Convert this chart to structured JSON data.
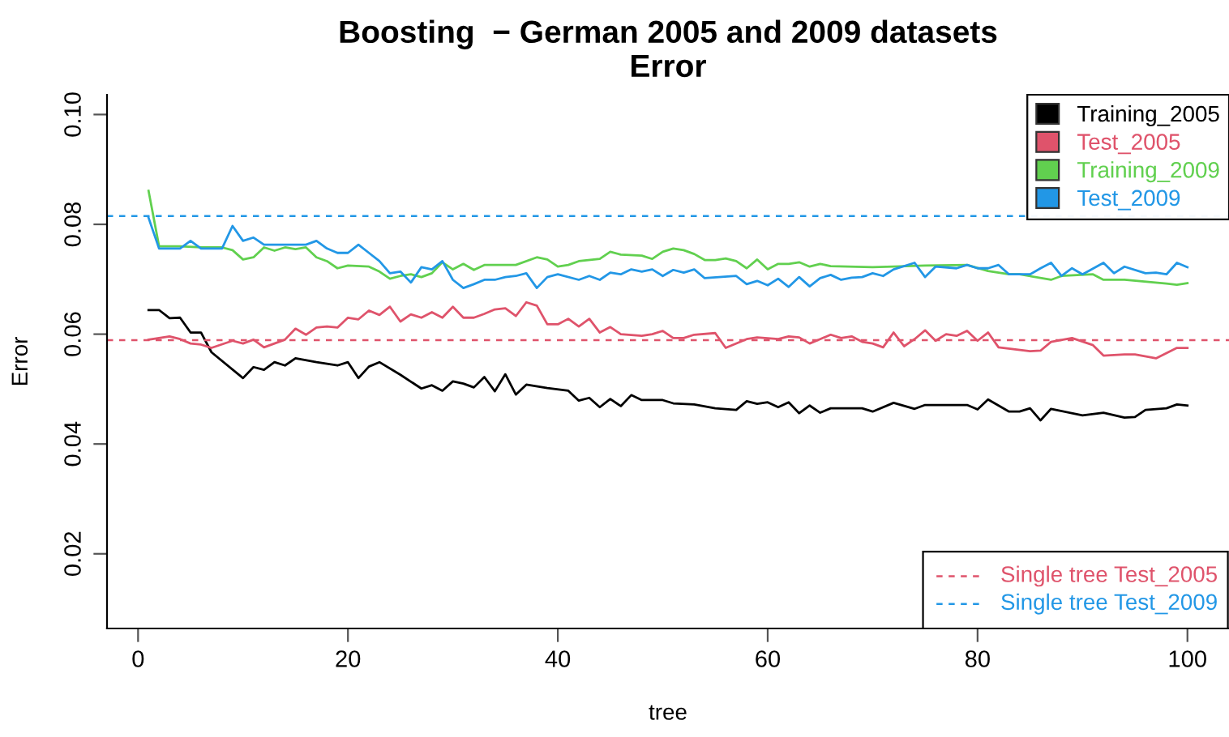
{
  "chart_data": {
    "type": "line",
    "title": "Boosting  − German 2005 and 2009 datasets\nError",
    "xlabel": "tree",
    "ylabel": "Error",
    "xlim": [
      -2.96,
      103.96
    ],
    "xticks": [
      0,
      20,
      40,
      60,
      80,
      100
    ],
    "ylim": [
      0.0064,
      0.1036
    ],
    "yticks": [
      0.02,
      0.04,
      0.06,
      0.08,
      {
        "value": 0.1,
        "label": "0.10"
      }
    ],
    "legend": "top right",
    "grid": false,
    "series": [
      {
        "name": "Training_2005",
        "color": "#000000",
        "x": [
          1,
          2,
          3,
          4,
          5,
          6,
          7,
          10,
          11,
          12,
          13,
          14,
          15,
          17,
          19,
          20,
          21,
          22,
          23,
          25,
          27,
          28,
          29,
          30,
          31,
          32,
          33,
          34,
          35,
          36,
          37,
          39,
          41,
          42,
          43,
          44,
          45,
          46,
          47,
          48,
          50,
          51,
          53,
          55,
          57,
          58,
          59,
          60,
          61,
          62,
          63,
          64,
          65,
          66,
          69,
          70,
          72,
          74,
          75,
          79,
          80,
          81,
          83,
          84,
          85,
          86,
          87,
          90,
          92,
          94,
          95,
          96,
          98,
          99,
          100
        ],
        "values": [
          0.0644,
          0.0644,
          0.0629,
          0.063,
          0.0603,
          0.0603,
          0.0567,
          0.052,
          0.054,
          0.0535,
          0.0549,
          0.0543,
          0.0556,
          0.0549,
          0.0543,
          0.0549,
          0.052,
          0.0541,
          0.0549,
          0.0526,
          0.0501,
          0.0507,
          0.0497,
          0.0514,
          0.051,
          0.0503,
          0.0522,
          0.0496,
          0.0527,
          0.049,
          0.0508,
          0.0502,
          0.0497,
          0.0479,
          0.0484,
          0.0467,
          0.0482,
          0.0469,
          0.0489,
          0.048,
          0.048,
          0.0474,
          0.0472,
          0.0465,
          0.0462,
          0.0478,
          0.0473,
          0.0476,
          0.0467,
          0.0476,
          0.0456,
          0.047,
          0.0457,
          0.0465,
          0.0465,
          0.0459,
          0.0475,
          0.0464,
          0.0471,
          0.0471,
          0.0463,
          0.0481,
          0.0459,
          0.0459,
          0.0465,
          0.0443,
          0.0464,
          0.0452,
          0.0457,
          0.0448,
          0.0449,
          0.0462,
          0.0465,
          0.0472,
          0.047
        ]
      },
      {
        "name": "Test_2005",
        "color": "#df536b",
        "x": [
          1,
          3,
          4,
          5,
          6,
          7,
          9,
          10,
          11,
          12,
          14,
          15,
          16,
          17,
          18,
          19,
          20,
          21,
          22,
          23,
          24,
          25,
          26,
          27,
          28,
          29,
          30,
          31,
          32,
          33,
          34,
          35,
          36,
          37,
          38,
          39,
          40,
          41,
          42,
          43,
          44,
          45,
          46,
          48,
          49,
          50,
          51,
          52,
          53,
          55,
          56,
          58,
          59,
          61,
          62,
          63,
          64,
          65,
          66,
          67,
          68,
          69,
          70,
          71,
          72,
          73,
          74,
          75,
          76,
          77,
          78,
          79,
          80,
          81,
          82,
          85,
          86,
          87,
          89,
          91,
          92,
          94,
          95,
          97,
          99,
          100
        ],
        "values": [
          0.059,
          0.0596,
          0.0591,
          0.0583,
          0.0581,
          0.0575,
          0.0588,
          0.0583,
          0.059,
          0.0576,
          0.059,
          0.061,
          0.0599,
          0.0612,
          0.0614,
          0.0612,
          0.063,
          0.0627,
          0.0643,
          0.0635,
          0.065,
          0.0623,
          0.0636,
          0.063,
          0.064,
          0.063,
          0.065,
          0.063,
          0.063,
          0.0637,
          0.0645,
          0.0647,
          0.0633,
          0.0658,
          0.0652,
          0.0618,
          0.0618,
          0.0628,
          0.0614,
          0.0628,
          0.0603,
          0.0613,
          0.06,
          0.0597,
          0.06,
          0.0606,
          0.0593,
          0.0593,
          0.0599,
          0.0602,
          0.0575,
          0.0591,
          0.0594,
          0.0591,
          0.0596,
          0.0594,
          0.0583,
          0.0591,
          0.0599,
          0.0593,
          0.0596,
          0.0586,
          0.0583,
          0.0576,
          0.0603,
          0.0578,
          0.0591,
          0.0607,
          0.0588,
          0.06,
          0.0597,
          0.0606,
          0.0588,
          0.0603,
          0.0576,
          0.0569,
          0.057,
          0.0586,
          0.0593,
          0.058,
          0.0561,
          0.0563,
          0.0563,
          0.0556,
          0.0575,
          0.0575
        ]
      },
      {
        "name": "Training_2009",
        "color": "#61d04f",
        "x": [
          1,
          2,
          4,
          6,
          8,
          9,
          10,
          11,
          12,
          13,
          14,
          15,
          16,
          17,
          18,
          19,
          20,
          22,
          23,
          24,
          25,
          26,
          27,
          28,
          29,
          30,
          31,
          32,
          33,
          36,
          38,
          39,
          40,
          41,
          42,
          44,
          45,
          46,
          48,
          49,
          50,
          51,
          52,
          53,
          54,
          55,
          56,
          57,
          58,
          59,
          60,
          61,
          62,
          63,
          64,
          65,
          66,
          70,
          72,
          75,
          79,
          81,
          83,
          84,
          87,
          88,
          91,
          92,
          94,
          98,
          99,
          100
        ],
        "values": [
          0.0861,
          0.076,
          0.076,
          0.0758,
          0.0758,
          0.0753,
          0.0736,
          0.074,
          0.0758,
          0.0752,
          0.0758,
          0.0755,
          0.0758,
          0.074,
          0.0733,
          0.072,
          0.0725,
          0.0723,
          0.0714,
          0.0701,
          0.0706,
          0.0709,
          0.0704,
          0.0711,
          0.0731,
          0.0718,
          0.0728,
          0.0717,
          0.0726,
          0.0726,
          0.074,
          0.0736,
          0.0723,
          0.0726,
          0.0733,
          0.0737,
          0.075,
          0.0745,
          0.0743,
          0.0737,
          0.075,
          0.0756,
          0.0753,
          0.0746,
          0.0735,
          0.0735,
          0.0738,
          0.0733,
          0.072,
          0.0736,
          0.0718,
          0.0728,
          0.0728,
          0.0731,
          0.0723,
          0.0728,
          0.0724,
          0.0722,
          0.0723,
          0.0725,
          0.0726,
          0.0715,
          0.0709,
          0.0709,
          0.0699,
          0.0706,
          0.0709,
          0.0699,
          0.0699,
          0.0692,
          0.069,
          0.0693
        ]
      },
      {
        "name": "Test_2009",
        "color": "#2297e6",
        "x": [
          1,
          2,
          4,
          5,
          6,
          8,
          9,
          10,
          11,
          12,
          16,
          17,
          18,
          19,
          20,
          21,
          22,
          23,
          24,
          25,
          26,
          27,
          28,
          29,
          30,
          31,
          32,
          33,
          34,
          35,
          36,
          37,
          38,
          39,
          40,
          42,
          43,
          44,
          45,
          46,
          47,
          48,
          49,
          50,
          51,
          52,
          53,
          54,
          57,
          58,
          59,
          60,
          61,
          62,
          63,
          64,
          65,
          66,
          67,
          68,
          69,
          70,
          71,
          72,
          74,
          75,
          76,
          78,
          79,
          80,
          81,
          82,
          83,
          85,
          86,
          87,
          88,
          89,
          90,
          92,
          93,
          94,
          96,
          97,
          98,
          99,
          100
        ],
        "values": [
          0.0812,
          0.0756,
          0.0756,
          0.077,
          0.0756,
          0.0756,
          0.0797,
          0.077,
          0.0776,
          0.0763,
          0.0763,
          0.077,
          0.0756,
          0.0748,
          0.0748,
          0.0763,
          0.0748,
          0.0733,
          0.0711,
          0.0714,
          0.0694,
          0.0722,
          0.0718,
          0.0733,
          0.0699,
          0.0684,
          0.0691,
          0.0699,
          0.0699,
          0.0704,
          0.0706,
          0.0711,
          0.0684,
          0.0704,
          0.0709,
          0.0699,
          0.0706,
          0.0699,
          0.0712,
          0.0709,
          0.0718,
          0.0714,
          0.0718,
          0.0706,
          0.0717,
          0.0712,
          0.0718,
          0.0702,
          0.0706,
          0.0691,
          0.0697,
          0.0689,
          0.0701,
          0.0686,
          0.0704,
          0.0687,
          0.0702,
          0.0708,
          0.0699,
          0.0703,
          0.0704,
          0.0711,
          0.0706,
          0.0718,
          0.073,
          0.0704,
          0.0723,
          0.072,
          0.0726,
          0.072,
          0.072,
          0.0726,
          0.0709,
          0.0709,
          0.072,
          0.073,
          0.0706,
          0.072,
          0.0709,
          0.073,
          0.0711,
          0.0723,
          0.0711,
          0.0712,
          0.0709,
          0.073,
          0.0722
        ]
      }
    ],
    "ref_lines": [
      {
        "axis": "y",
        "value": 0.0589,
        "label": "Single tree Test_2005",
        "color": "#df536b",
        "line_style": "dashed"
      },
      {
        "axis": "y",
        "value": 0.0815,
        "label": "Single tree Test_2009",
        "color": "#2297e6",
        "line_style": "dashed"
      }
    ]
  }
}
